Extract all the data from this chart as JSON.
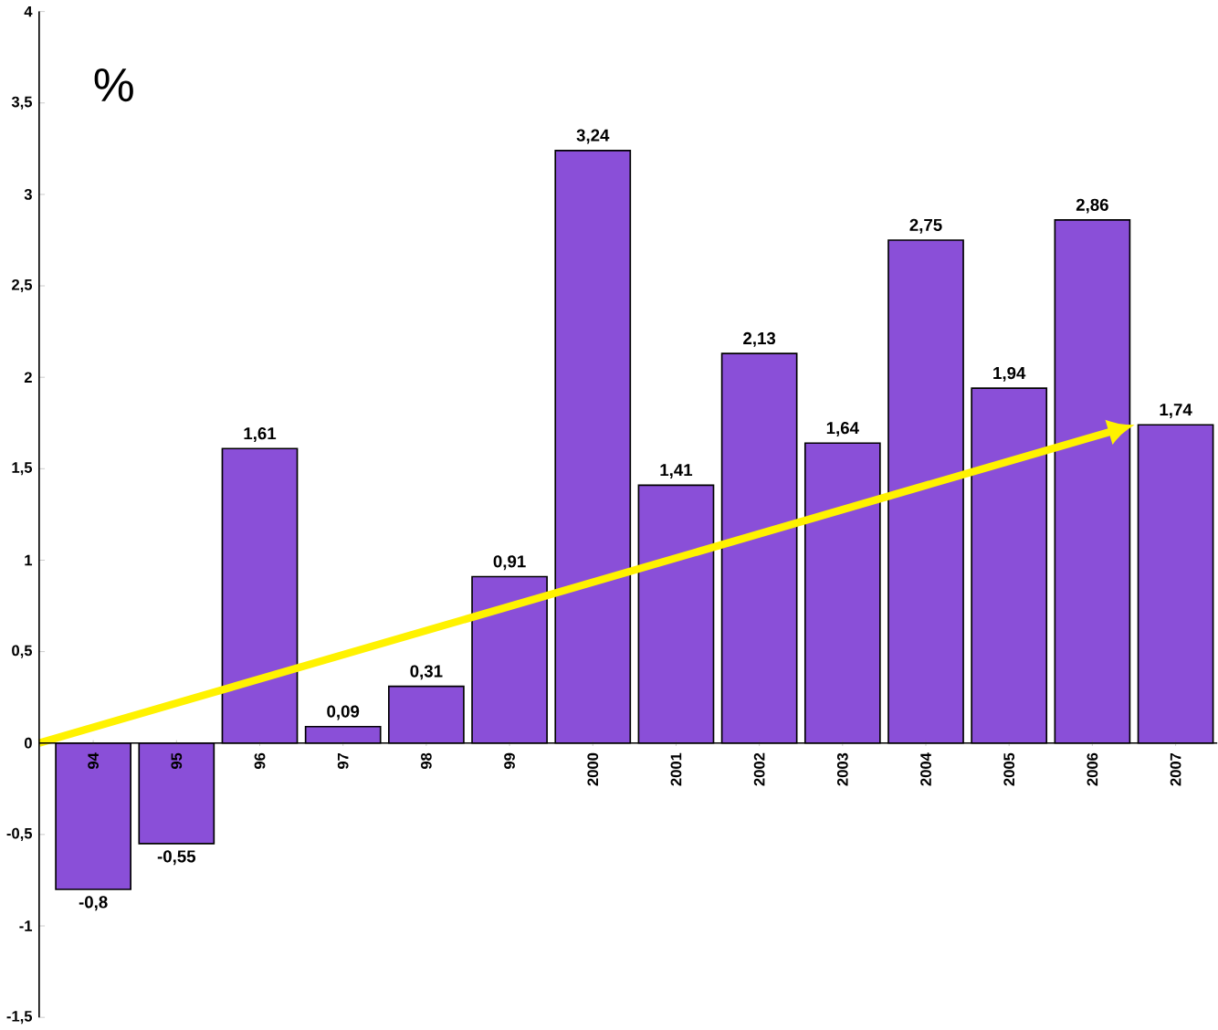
{
  "chart_data": {
    "type": "bar",
    "ylabel": "%",
    "categories": [
      "94",
      "95",
      "96",
      "97",
      "98",
      "99",
      "2000",
      "2001",
      "2002",
      "2003",
      "2004",
      "2005",
      "2006",
      "2007"
    ],
    "series": [
      {
        "color": "#8a4fd8",
        "values": [
          -0.8,
          -0.55,
          1.61,
          0.09,
          0.31,
          0.91,
          3.24,
          1.41,
          2.13,
          1.64,
          2.75,
          1.94,
          2.86,
          1.74
        ],
        "value_labels": [
          "-0,8",
          "-0,55",
          "1,61",
          "0,09",
          "0,31",
          "0,91",
          "3,24",
          "1,41",
          "2,13",
          "1,64",
          "2,75",
          "1,94",
          "2,86",
          "1,74"
        ]
      }
    ],
    "ylim": [
      -1.5,
      4
    ],
    "yticks": [
      {
        "value": -1.5,
        "label": "-1,5"
      },
      -1,
      {
        "value": -0.5,
        "label": "-0,5"
      },
      0,
      {
        "value": 0.5,
        "label": "0,5"
      },
      1,
      {
        "value": 1.5,
        "label": "1,5"
      },
      2,
      {
        "value": 2.5,
        "label": "2,5"
      },
      3,
      {
        "value": 3.5,
        "label": "3,5"
      },
      4
    ],
    "grid": false
  }
}
